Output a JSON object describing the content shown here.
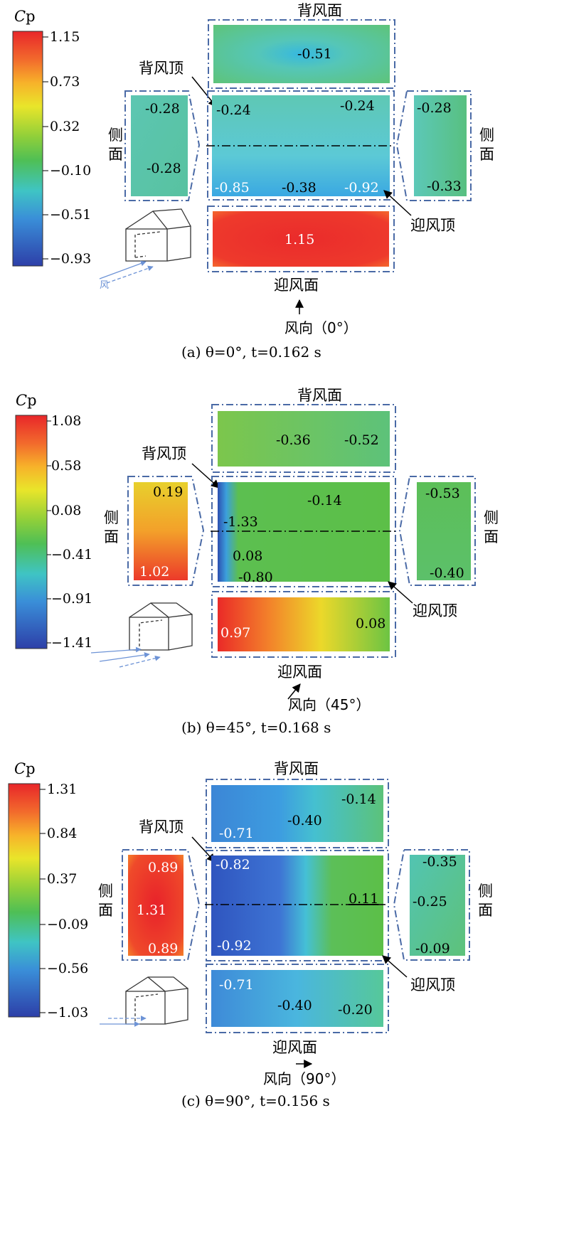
{
  "panels": [
    {
      "id": "a",
      "caption": "(a) θ=0°, t=0.162 s",
      "colorbar": {
        "title": "Cp",
        "ticks": [
          "1.15",
          "0.73",
          "0.32",
          "−0.10",
          "−0.51",
          "−0.93"
        ]
      },
      "labels": {
        "leeward_face": "背风面",
        "leeward_roof": "背风顶",
        "windward_roof": "迎风顶",
        "windward_face": "迎风面",
        "side_left": "侧面",
        "side_right": "侧面",
        "wind_dir": "风向（0°）",
        "wind_small": "风"
      },
      "faces": {
        "leeward_face": [
          "-0.51"
        ],
        "left_side": [
          "-0.28",
          "-0.28"
        ],
        "roof": [
          "-0.24",
          "-0.24",
          "-0.85",
          "-0.38",
          "-0.92"
        ],
        "right_side": [
          "-0.28",
          "-0.33"
        ],
        "windward_face": [
          "1.15"
        ]
      },
      "colors": {
        "leeward_face": "#4fc2a0",
        "left_side": "#55c3a5",
        "roof": "#62c8c7",
        "right_side": "#5cc39a",
        "windward_face": "#ef3a2c"
      }
    },
    {
      "id": "b",
      "caption": "(b) θ=45°, t=0.168 s",
      "colorbar": {
        "title": "Cp",
        "ticks": [
          "1.08",
          "0.58",
          "0.08",
          "−0.41",
          "−0.91",
          "−1.41"
        ]
      },
      "labels": {
        "leeward_face": "背风面",
        "leeward_roof": "背风顶",
        "windward_roof": "迎风顶",
        "windward_face": "迎风面",
        "side_left": "侧面",
        "side_right": "侧面",
        "wind_dir": "风向（45°）"
      },
      "faces": {
        "leeward_face": [
          "-0.36",
          "-0.52"
        ],
        "left_side": [
          "0.19",
          "1.02"
        ],
        "roof": [
          "-0.14",
          "-1.33",
          "0.08",
          "-0.80"
        ],
        "right_side": [
          "-0.53",
          "-0.40"
        ],
        "windward_face": [
          "0.97",
          "0.08"
        ]
      },
      "colors": {
        "leeward_face": "#63c45b",
        "left_side": "#f07a2a",
        "roof": "#5cbf48",
        "right_side": "#5cbf62",
        "windward_face": "#f29a28"
      }
    },
    {
      "id": "c",
      "caption": "(c) θ=90°, t=0.156 s",
      "colorbar": {
        "title": "Cp",
        "ticks": [
          "1.31",
          "0.84",
          "0.37",
          "−0.09",
          "−0.56",
          "−1.03"
        ]
      },
      "labels": {
        "leeward_face": "背风面",
        "leeward_roof": "背风顶",
        "windward_roof": "迎风顶",
        "windward_face": "迎风面",
        "side_left": "侧面",
        "side_right": "侧面",
        "wind_dir": "风向（90°）"
      },
      "faces": {
        "leeward_face": [
          "-0.71",
          "-0.40",
          "-0.14"
        ],
        "left_side": [
          "0.89",
          "1.31",
          "0.89"
        ],
        "roof": [
          "-0.82",
          "0.11",
          "-0.92"
        ],
        "right_side": [
          "-0.35",
          "-0.25",
          "-0.09"
        ],
        "windward_face": [
          "-0.71",
          "-0.40",
          "-0.20"
        ]
      },
      "colors": {
        "leeward_face": "#4a9fdc",
        "left_side": "#ee3a2a",
        "roof": "#3b72cf",
        "right_side": "#58c59a",
        "windward_face": "#4ba6dc"
      }
    }
  ]
}
